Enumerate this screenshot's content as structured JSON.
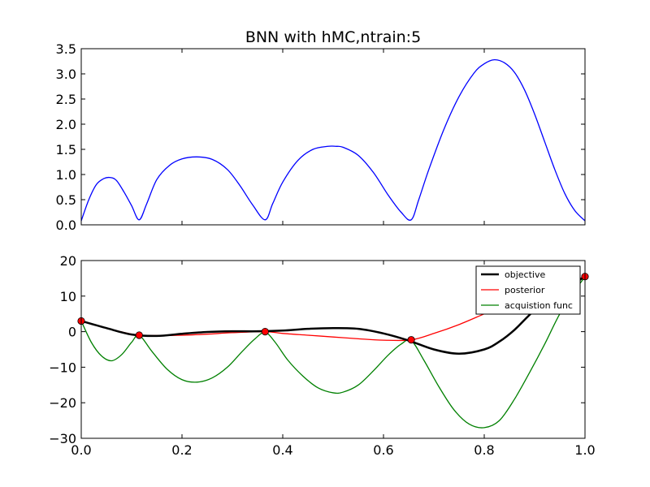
{
  "chart_data": [
    {
      "type": "line",
      "title": "BNN with hMC,ntrain:5",
      "xlabel": "",
      "ylabel": "",
      "xlim": [
        0.0,
        1.0
      ],
      "ylim": [
        0.0,
        3.5
      ],
      "x_tick_labels_visible": false,
      "y_ticks": [
        "0.0",
        "0.5",
        "1.0",
        "1.5",
        "2.0",
        "2.5",
        "3.0",
        "3.5"
      ],
      "grid": false,
      "series": [
        {
          "color": "#0000ff",
          "x": [
            0.0,
            0.015,
            0.03,
            0.045,
            0.058,
            0.07,
            0.085,
            0.1,
            0.115,
            0.13,
            0.15,
            0.175,
            0.2,
            0.23,
            0.26,
            0.29,
            0.315,
            0.34,
            0.365,
            0.38,
            0.4,
            0.43,
            0.46,
            0.49,
            0.505,
            0.52,
            0.55,
            0.58,
            0.61,
            0.635,
            0.655,
            0.67,
            0.69,
            0.72,
            0.75,
            0.78,
            0.8,
            0.82,
            0.84,
            0.86,
            0.88,
            0.9,
            0.92,
            0.94,
            0.96,
            0.98,
            1.0
          ],
          "y": [
            0.08,
            0.5,
            0.8,
            0.92,
            0.94,
            0.88,
            0.65,
            0.38,
            0.1,
            0.42,
            0.9,
            1.18,
            1.31,
            1.35,
            1.3,
            1.1,
            0.78,
            0.4,
            0.1,
            0.42,
            0.85,
            1.28,
            1.5,
            1.56,
            1.56,
            1.54,
            1.38,
            1.04,
            0.58,
            0.25,
            0.1,
            0.5,
            1.1,
            1.9,
            2.55,
            3.02,
            3.2,
            3.28,
            3.22,
            3.03,
            2.68,
            2.2,
            1.65,
            1.1,
            0.62,
            0.28,
            0.08
          ]
        }
      ]
    },
    {
      "type": "line",
      "title": "",
      "xlabel": "",
      "ylabel": "",
      "xlim": [
        0.0,
        1.0
      ],
      "ylim": [
        -30,
        20
      ],
      "x_ticks": [
        "0.0",
        "0.2",
        "0.4",
        "0.6",
        "0.8",
        "1.0"
      ],
      "y_ticks": [
        "20",
        "10",
        "0",
        "−10",
        "−20",
        "−30"
      ],
      "grid": false,
      "legend_position": "top-right",
      "series": [
        {
          "name": "objective",
          "color": "#000000",
          "x": [
            0.0,
            0.05,
            0.1,
            0.15,
            0.2,
            0.25,
            0.3,
            0.35,
            0.4,
            0.45,
            0.5,
            0.55,
            0.6,
            0.65,
            0.7,
            0.75,
            0.8,
            0.83,
            0.86,
            0.9,
            0.95,
            1.0
          ],
          "y": [
            3.0,
            1.0,
            -0.8,
            -1.2,
            -0.6,
            -0.1,
            0.1,
            0.1,
            0.3,
            0.8,
            1.0,
            0.8,
            -0.5,
            -2.5,
            -5.0,
            -6.2,
            -5.0,
            -2.8,
            0.5,
            6.0,
            11.0,
            15.5
          ]
        },
        {
          "name": "posterior",
          "color": "#ff0000",
          "x": [
            0.0,
            0.05,
            0.1,
            0.115,
            0.15,
            0.2,
            0.25,
            0.3,
            0.365,
            0.4,
            0.45,
            0.5,
            0.55,
            0.6,
            0.655,
            0.7,
            0.75,
            0.8,
            0.85,
            0.9,
            0.95,
            1.0
          ],
          "y": [
            3.0,
            1.0,
            -0.7,
            -1.0,
            -1.1,
            -1.0,
            -0.7,
            -0.3,
            0.0,
            -0.5,
            -1.0,
            -1.5,
            -2.0,
            -2.4,
            -2.3,
            -0.5,
            2.0,
            5.0,
            8.0,
            10.5,
            13.0,
            15.5
          ]
        },
        {
          "name": "acquistion func",
          "color": "#008000",
          "x": [
            0.0,
            0.02,
            0.04,
            0.06,
            0.08,
            0.1,
            0.115,
            0.14,
            0.17,
            0.2,
            0.23,
            0.26,
            0.29,
            0.32,
            0.345,
            0.365,
            0.385,
            0.41,
            0.44,
            0.47,
            0.5,
            0.52,
            0.55,
            0.58,
            0.61,
            0.635,
            0.655,
            0.68,
            0.71,
            0.74,
            0.77,
            0.8,
            0.83,
            0.86,
            0.89,
            0.92,
            0.95,
            0.98,
            1.0
          ],
          "y": [
            3.0,
            -3.0,
            -6.8,
            -8.2,
            -6.5,
            -3.0,
            -1.0,
            -5.5,
            -10.5,
            -13.5,
            -14.2,
            -13.0,
            -10.0,
            -5.5,
            -2.0,
            -0.2,
            -3.0,
            -8.0,
            -12.5,
            -15.8,
            -17.2,
            -17.0,
            -15.0,
            -11.0,
            -6.5,
            -3.5,
            -2.5,
            -8.0,
            -15.5,
            -22.0,
            -26.0,
            -27.0,
            -25.0,
            -19.0,
            -11.5,
            -3.5,
            5.0,
            11.5,
            15.5
          ]
        }
      ],
      "markers": {
        "color": "#ff0000",
        "x": [
          0.0,
          0.115,
          0.365,
          0.655,
          1.0
        ],
        "y": [
          3.0,
          -1.0,
          0.0,
          -2.3,
          15.5
        ]
      }
    }
  ]
}
